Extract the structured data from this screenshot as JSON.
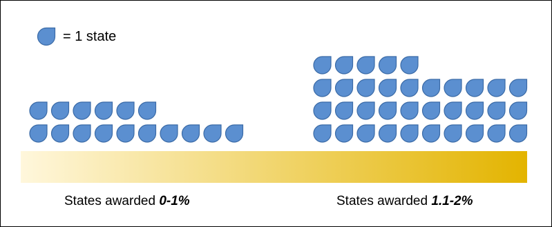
{
  "chart_data": {
    "type": "pictograph",
    "legend": {
      "unit": "= 1 state"
    },
    "categories": [
      {
        "label_prefix": "States awarded ",
        "label_value": "0-1%",
        "count": 16,
        "rows": [
          10,
          6
        ]
      },
      {
        "label_prefix": "States awarded ",
        "label_value": "1.1-2%",
        "count": 35,
        "rows": [
          10,
          10,
          10,
          5
        ]
      }
    ],
    "gradient_bar": {
      "from": "#fff7dc",
      "to": "#e3b400"
    },
    "colors": {
      "icon_fill": "#5b8fd0",
      "icon_stroke": "#3a6aa6"
    }
  }
}
